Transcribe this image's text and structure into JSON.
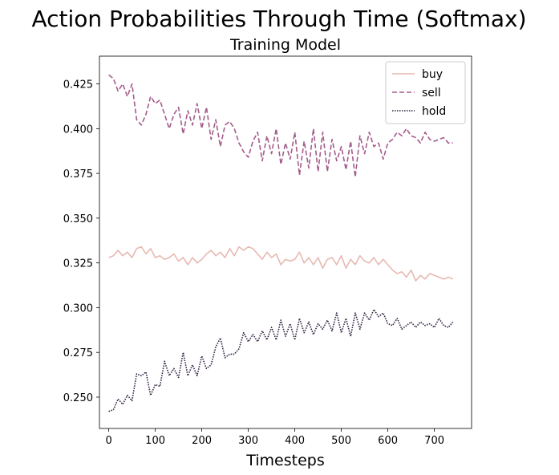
{
  "figure": {
    "suptitle": "Action Probabilities Through Time (Softmax)"
  },
  "chart_data": {
    "type": "line",
    "title": "Training Model",
    "xlabel": "Timesteps",
    "ylabel": "",
    "xlim": [
      -20,
      780
    ],
    "ylim": [
      0.2325,
      0.4405
    ],
    "xticks": [
      0,
      100,
      200,
      300,
      400,
      500,
      600,
      700
    ],
    "yticks": [
      0.25,
      0.275,
      0.3,
      0.325,
      0.35,
      0.375,
      0.4,
      0.425
    ],
    "ytick_labels": [
      "0.250",
      "0.275",
      "0.300",
      "0.325",
      "0.350",
      "0.375",
      "0.400",
      "0.425"
    ],
    "grid": false,
    "legend_position": "top-right",
    "series": [
      {
        "name": "buy",
        "color": "#e7b9b2",
        "dash": "solid",
        "x": [
          0,
          10,
          20,
          30,
          40,
          50,
          60,
          70,
          80,
          90,
          100,
          110,
          120,
          130,
          140,
          150,
          160,
          170,
          180,
          190,
          200,
          210,
          220,
          230,
          240,
          250,
          260,
          270,
          280,
          290,
          300,
          310,
          320,
          330,
          340,
          350,
          360,
          370,
          380,
          390,
          400,
          410,
          420,
          430,
          440,
          450,
          460,
          470,
          480,
          490,
          500,
          510,
          520,
          530,
          540,
          550,
          560,
          570,
          580,
          590,
          600,
          610,
          620,
          630,
          640,
          650,
          660,
          670,
          680,
          690,
          700,
          710,
          720,
          730,
          740
        ],
        "values": [
          0.328,
          0.329,
          0.332,
          0.329,
          0.331,
          0.328,
          0.333,
          0.334,
          0.33,
          0.333,
          0.328,
          0.329,
          0.327,
          0.328,
          0.33,
          0.326,
          0.328,
          0.324,
          0.328,
          0.325,
          0.327,
          0.33,
          0.332,
          0.329,
          0.331,
          0.328,
          0.333,
          0.329,
          0.334,
          0.332,
          0.334,
          0.333,
          0.33,
          0.327,
          0.331,
          0.328,
          0.33,
          0.324,
          0.327,
          0.326,
          0.327,
          0.331,
          0.325,
          0.328,
          0.324,
          0.328,
          0.322,
          0.327,
          0.328,
          0.324,
          0.329,
          0.322,
          0.327,
          0.324,
          0.329,
          0.326,
          0.325,
          0.328,
          0.324,
          0.327,
          0.324,
          0.321,
          0.319,
          0.32,
          0.317,
          0.321,
          0.315,
          0.318,
          0.316,
          0.319,
          0.318,
          0.317,
          0.316,
          0.317,
          0.316
        ]
      },
      {
        "name": "sell",
        "color": "#a45c8b",
        "dash": "dashed",
        "x": [
          0,
          10,
          20,
          30,
          40,
          50,
          60,
          70,
          80,
          90,
          100,
          110,
          120,
          130,
          140,
          150,
          160,
          170,
          180,
          190,
          200,
          210,
          220,
          230,
          240,
          250,
          260,
          270,
          280,
          290,
          300,
          310,
          320,
          330,
          340,
          350,
          360,
          370,
          380,
          390,
          400,
          410,
          420,
          430,
          440,
          450,
          460,
          470,
          480,
          490,
          500,
          510,
          520,
          530,
          540,
          550,
          560,
          570,
          580,
          590,
          600,
          610,
          620,
          630,
          640,
          650,
          660,
          670,
          680,
          690,
          700,
          710,
          720,
          730,
          740
        ],
        "values": [
          0.43,
          0.428,
          0.421,
          0.425,
          0.418,
          0.425,
          0.405,
          0.402,
          0.408,
          0.418,
          0.414,
          0.416,
          0.408,
          0.4,
          0.408,
          0.412,
          0.397,
          0.41,
          0.402,
          0.414,
          0.4,
          0.412,
          0.394,
          0.405,
          0.39,
          0.402,
          0.404,
          0.4,
          0.392,
          0.387,
          0.384,
          0.393,
          0.398,
          0.382,
          0.396,
          0.386,
          0.4,
          0.38,
          0.392,
          0.383,
          0.398,
          0.374,
          0.393,
          0.378,
          0.4,
          0.376,
          0.398,
          0.376,
          0.394,
          0.382,
          0.39,
          0.377,
          0.393,
          0.373,
          0.396,
          0.386,
          0.398,
          0.39,
          0.392,
          0.383,
          0.392,
          0.394,
          0.398,
          0.396,
          0.4,
          0.396,
          0.395,
          0.392,
          0.398,
          0.394,
          0.393,
          0.394,
          0.395,
          0.392,
          0.392
        ]
      },
      {
        "name": "hold",
        "color": "#2d1e3e",
        "dash": "dotted",
        "x": [
          0,
          10,
          20,
          30,
          40,
          50,
          60,
          70,
          80,
          90,
          100,
          110,
          120,
          130,
          140,
          150,
          160,
          170,
          180,
          190,
          200,
          210,
          220,
          230,
          240,
          250,
          260,
          270,
          280,
          290,
          300,
          310,
          320,
          330,
          340,
          350,
          360,
          370,
          380,
          390,
          400,
          410,
          420,
          430,
          440,
          450,
          460,
          470,
          480,
          490,
          500,
          510,
          520,
          530,
          540,
          550,
          560,
          570,
          580,
          590,
          600,
          610,
          620,
          630,
          640,
          650,
          660,
          670,
          680,
          690,
          700,
          710,
          720,
          730,
          740
        ],
        "values": [
          0.242,
          0.243,
          0.249,
          0.246,
          0.251,
          0.248,
          0.263,
          0.262,
          0.264,
          0.251,
          0.257,
          0.256,
          0.27,
          0.262,
          0.266,
          0.261,
          0.275,
          0.262,
          0.268,
          0.262,
          0.273,
          0.266,
          0.268,
          0.278,
          0.283,
          0.272,
          0.274,
          0.274,
          0.277,
          0.286,
          0.281,
          0.285,
          0.281,
          0.287,
          0.282,
          0.289,
          0.282,
          0.293,
          0.284,
          0.291,
          0.282,
          0.294,
          0.286,
          0.292,
          0.285,
          0.291,
          0.288,
          0.293,
          0.287,
          0.297,
          0.286,
          0.294,
          0.284,
          0.297,
          0.288,
          0.297,
          0.293,
          0.299,
          0.295,
          0.297,
          0.291,
          0.29,
          0.294,
          0.288,
          0.29,
          0.292,
          0.289,
          0.292,
          0.29,
          0.291,
          0.289,
          0.294,
          0.29,
          0.289,
          0.292
        ]
      }
    ]
  }
}
